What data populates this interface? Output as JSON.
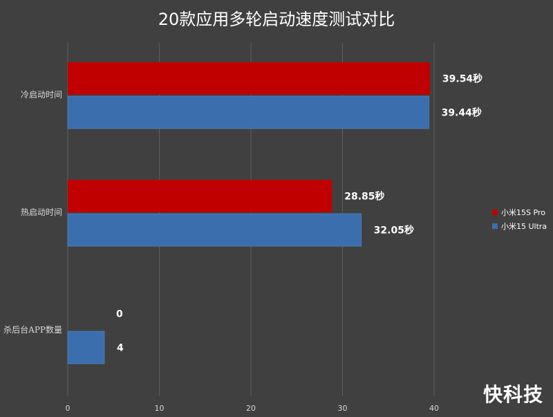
{
  "chart_data": {
    "type": "bar",
    "orientation": "horizontal",
    "title": "20款应用多轮启动速度测试对比",
    "categories": [
      "冷启动时间",
      "热启动时间",
      "杀后台APP数量"
    ],
    "series": [
      {
        "name": "小米15S Pro",
        "color": "#c00000",
        "values": [
          39.54,
          28.85,
          0
        ],
        "data_labels": [
          "39.54秒",
          "28.85秒",
          "0"
        ]
      },
      {
        "name": "小米15 Ultra",
        "color": "#3a6ead",
        "values": [
          39.44,
          32.05,
          4
        ],
        "data_labels": [
          "39.44秒",
          "32.05秒",
          "4"
        ]
      }
    ],
    "xlim": [
      0,
      40
    ],
    "xticks": [
      "0",
      "10",
      "20",
      "30",
      "40"
    ],
    "grid": true,
    "legend": "right"
  },
  "watermark": "快科技"
}
